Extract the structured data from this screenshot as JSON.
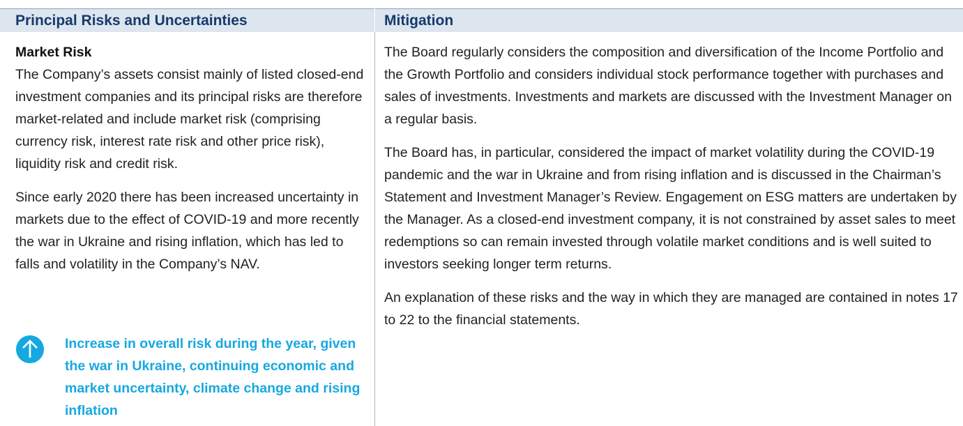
{
  "table": {
    "headers": [
      "Principal Risks and Uncertainties",
      "Mitigation"
    ],
    "risk": {
      "title": "Market Risk",
      "paragraphs": [
        "The Company’s assets consist mainly of listed closed-end investment companies and its principal risks are therefore market-related and include market risk (comprising currency risk, interest rate risk and other price risk), liquidity risk and credit risk.",
        "Since early 2020 there has been increased uncertainty in markets due to the effect of COVID-19 and more recently the war in Ukraine and rising inflation, which has led to falls and volatility in the Company’s NAV."
      ],
      "callout": "Increase in overall risk during the year, given the war in Ukraine, continuing economic and market uncertainty, climate change and rising inflation"
    },
    "mitigation": [
      "The Board regularly considers the composition and diversification of the Income Portfolio and the Growth Portfolio and considers individual stock performance together with purchases and sales of investments. Investments and markets are discussed with the Investment Manager on a regular basis.",
      "The Board has, in particular, considered the impact of market volatility during the COVID-19 pandemic and the war in Ukraine and from rising inflation and is discussed in the Chairman’s Statement and Investment Manager’s Review. Engagement on ESG matters are undertaken by the Manager. As a closed-end investment company, it is not constrained by asset sales to meet redemptions so can remain invested through volatile market conditions and is well suited to investors seeking longer term returns.",
      "An explanation of these risks and the way in which they are managed are contained in notes 17 to 22 to the financial statements."
    ]
  }
}
